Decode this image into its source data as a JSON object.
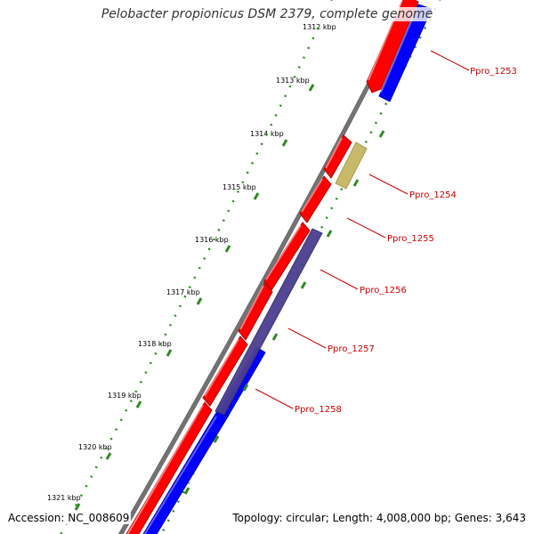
{
  "title": "Pelobacter propionicus DSM 2379, complete genome",
  "footer": {
    "accession": "Accession: NC_008609",
    "summary": "Topology: circular; Length: 4,008,000 bp; Genes: 3,643"
  },
  "colors": {
    "forward_cds": "#ff0000",
    "reverse_cds": "#0000ff",
    "backbone": "#8a8a8a",
    "tick": "#2e8b20",
    "label": "#cc0000",
    "khaki_feature": "#c8b96a",
    "purple_feature": "#4b3f8f"
  },
  "chart_data": {
    "type": "genome_map",
    "ticks": [
      "1312 kbp",
      "1313 kbp",
      "1314 kbp",
      "1315 kbp",
      "1316 kbp",
      "1317 kbp",
      "1318 kbp",
      "1319 kbp",
      "1320 kbp",
      "1321 kbp"
    ],
    "genes": [
      {
        "label": "Ppro_1253"
      },
      {
        "label": "Ppro_1254"
      },
      {
        "label": "Ppro_1255"
      },
      {
        "label": "Ppro_1256"
      },
      {
        "label": "Ppro_1257"
      },
      {
        "label": "Ppro_1258"
      }
    ]
  }
}
